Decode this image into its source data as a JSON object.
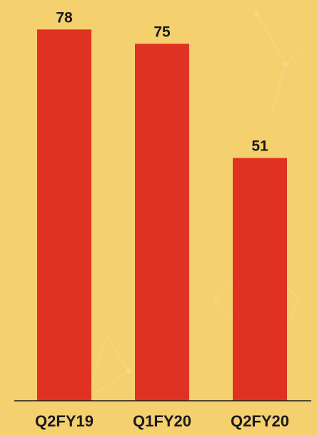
{
  "chart_data": {
    "type": "bar",
    "categories": [
      "Q2FY19",
      "Q1FY20",
      "Q2FY20"
    ],
    "values": [
      78,
      75,
      51
    ],
    "data_labels": [
      "78",
      "75",
      "51"
    ],
    "title": "",
    "xlabel": "",
    "ylabel": "",
    "ylim": [
      0,
      80
    ],
    "grid": false,
    "legend": "none"
  },
  "colors": {
    "background": "#f5d06e",
    "bar": "#e03222",
    "axis": "#1a1a1a",
    "text": "#1a1a1a"
  }
}
